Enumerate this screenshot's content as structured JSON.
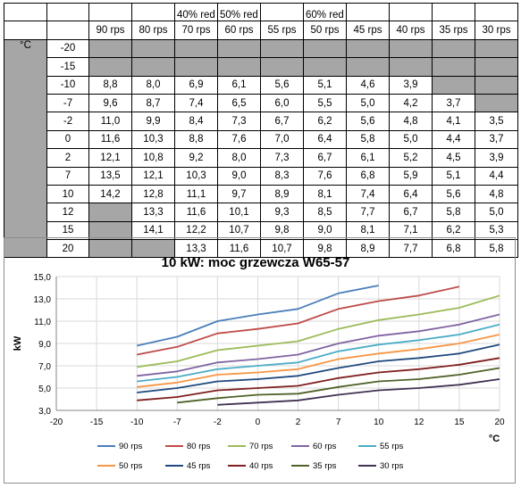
{
  "table": {
    "header_top": [
      "",
      "",
      "",
      "",
      "40% red",
      "50% red",
      "",
      "60% red",
      "",
      "",
      "",
      ""
    ],
    "header_bottom": [
      "",
      "",
      "90 rps",
      "80 rps",
      "70 rps",
      "60 rps",
      "55 rps",
      "50 rps",
      "45 rps",
      "40 rps",
      "35 rps",
      "30 rps"
    ],
    "unit_label": "°C",
    "rows": [
      {
        "t": "-20",
        "v": [
          "",
          "",
          "",
          "",
          "",
          "",
          "",
          "",
          "",
          ""
        ],
        "gray": [
          1,
          1,
          1,
          1,
          1,
          1,
          1,
          1,
          1,
          1
        ]
      },
      {
        "t": "-15",
        "v": [
          "",
          "",
          "",
          "",
          "",
          "",
          "",
          "",
          "",
          ""
        ],
        "gray": [
          1,
          1,
          1,
          1,
          1,
          1,
          1,
          1,
          1,
          1
        ]
      },
      {
        "t": "-10",
        "v": [
          "8,8",
          "8,0",
          "6,9",
          "6,1",
          "5,6",
          "5,1",
          "4,6",
          "3,9",
          "",
          ""
        ],
        "gray": [
          0,
          0,
          0,
          0,
          0,
          0,
          0,
          0,
          1,
          1
        ]
      },
      {
        "t": "-7",
        "v": [
          "9,6",
          "8,7",
          "7,4",
          "6,5",
          "6,0",
          "5,5",
          "5,0",
          "4,2",
          "3,7",
          ""
        ],
        "gray": [
          0,
          0,
          0,
          0,
          0,
          0,
          0,
          0,
          0,
          1
        ]
      },
      {
        "t": "-2",
        "v": [
          "11,0",
          "9,9",
          "8,4",
          "7,3",
          "6,7",
          "6,2",
          "5,6",
          "4,8",
          "4,1",
          "3,5"
        ],
        "gray": [
          0,
          0,
          0,
          0,
          0,
          0,
          0,
          0,
          0,
          0
        ]
      },
      {
        "t": "0",
        "v": [
          "11,6",
          "10,3",
          "8,8",
          "7,6",
          "7,0",
          "6,4",
          "5,8",
          "5,0",
          "4,4",
          "3,7"
        ],
        "gray": [
          0,
          0,
          0,
          0,
          0,
          0,
          0,
          0,
          0,
          0
        ]
      },
      {
        "t": "2",
        "v": [
          "12,1",
          "10,8",
          "9,2",
          "8,0",
          "7,3",
          "6,7",
          "6,1",
          "5,2",
          "4,5",
          "3,9"
        ],
        "gray": [
          0,
          0,
          0,
          0,
          0,
          0,
          0,
          0,
          0,
          0
        ]
      },
      {
        "t": "7",
        "v": [
          "13,5",
          "12,1",
          "10,3",
          "9,0",
          "8,3",
          "7,6",
          "6,8",
          "5,9",
          "5,1",
          "4,4"
        ],
        "gray": [
          0,
          0,
          0,
          0,
          0,
          0,
          0,
          0,
          0,
          0
        ]
      },
      {
        "t": "10",
        "v": [
          "14,2",
          "12,8",
          "11,1",
          "9,7",
          "8,9",
          "8,1",
          "7,4",
          "6,4",
          "5,6",
          "4,8"
        ],
        "gray": [
          0,
          0,
          0,
          0,
          0,
          0,
          0,
          0,
          0,
          0
        ]
      },
      {
        "t": "12",
        "v": [
          "",
          "13,3",
          "11,6",
          "10,1",
          "9,3",
          "8,5",
          "7,7",
          "6,7",
          "5,8",
          "5,0"
        ],
        "gray": [
          1,
          0,
          0,
          0,
          0,
          0,
          0,
          0,
          0,
          0
        ]
      },
      {
        "t": "15",
        "v": [
          "",
          "14,1",
          "12,2",
          "10,7",
          "9,8",
          "9,0",
          "8,1",
          "7,1",
          "6,2",
          "5,3"
        ],
        "gray": [
          1,
          0,
          0,
          0,
          0,
          0,
          0,
          0,
          0,
          0
        ]
      },
      {
        "t": "20",
        "v": [
          "",
          "",
          "13,3",
          "11,6",
          "10,7",
          "9,8",
          "8,9",
          "7,7",
          "6,8",
          "5,8"
        ],
        "gray": [
          1,
          1,
          0,
          0,
          0,
          0,
          0,
          0,
          0,
          0
        ]
      }
    ]
  },
  "chart_data": {
    "type": "line",
    "title": "10 kW: moc grzewcza W65-57",
    "ylabel": "kW",
    "xlabel": "°C",
    "xlim": [
      -20,
      20
    ],
    "ylim": [
      3,
      15
    ],
    "x_ticks": [
      "-20",
      "-15",
      "-10",
      "-7",
      "-2",
      "0",
      "2",
      "7",
      "10",
      "12",
      "15",
      "20"
    ],
    "y_ticks": [
      "3,0",
      "5,0",
      "7,0",
      "9,0",
      "11,0",
      "13,0",
      "15,0"
    ],
    "grid": true,
    "legend_position": "bottom",
    "x_categories": [
      -20,
      -15,
      -10,
      -7,
      -2,
      0,
      2,
      7,
      10,
      12,
      15,
      20
    ],
    "series": [
      {
        "name": "90 rps",
        "color": "#4a7ebb",
        "values": [
          null,
          null,
          8.8,
          9.6,
          11.0,
          11.6,
          12.1,
          13.5,
          14.2,
          null,
          null,
          null
        ]
      },
      {
        "name": "80 rps",
        "color": "#be4b48",
        "values": [
          null,
          null,
          8.0,
          8.7,
          9.9,
          10.3,
          10.8,
          12.1,
          12.8,
          13.3,
          14.1,
          null
        ]
      },
      {
        "name": "70 rps",
        "color": "#9bbb59",
        "values": [
          null,
          null,
          6.9,
          7.4,
          8.4,
          8.8,
          9.2,
          10.3,
          11.1,
          11.6,
          12.2,
          13.3
        ]
      },
      {
        "name": "60 rps",
        "color": "#8064a2",
        "values": [
          null,
          null,
          6.1,
          6.5,
          7.3,
          7.6,
          8.0,
          9.0,
          9.7,
          10.1,
          10.7,
          11.6
        ]
      },
      {
        "name": "55 rps",
        "color": "#4bacc6",
        "values": [
          null,
          null,
          5.6,
          6.0,
          6.7,
          7.0,
          7.3,
          8.3,
          8.9,
          9.3,
          9.8,
          10.7
        ]
      },
      {
        "name": "50 rps",
        "color": "#f79646",
        "values": [
          null,
          null,
          5.1,
          5.5,
          6.2,
          6.4,
          6.7,
          7.6,
          8.1,
          8.5,
          9.0,
          9.8
        ]
      },
      {
        "name": "45 rps",
        "color": "#1f497d",
        "values": [
          null,
          null,
          4.6,
          5.0,
          5.6,
          5.8,
          6.1,
          6.8,
          7.4,
          7.7,
          8.1,
          8.9
        ]
      },
      {
        "name": "40 rps",
        "color": "#7f1f1f",
        "values": [
          null,
          null,
          3.9,
          4.2,
          4.8,
          5.0,
          5.2,
          5.9,
          6.4,
          6.7,
          7.1,
          7.7
        ]
      },
      {
        "name": "35 rps",
        "color": "#4f6228",
        "values": [
          null,
          null,
          null,
          3.7,
          4.1,
          4.4,
          4.5,
          5.1,
          5.6,
          5.8,
          6.2,
          6.8
        ]
      },
      {
        "name": "30 rps",
        "color": "#403152",
        "values": [
          null,
          null,
          null,
          null,
          3.5,
          3.7,
          3.9,
          4.4,
          4.8,
          5.0,
          5.3,
          5.8
        ]
      }
    ]
  }
}
